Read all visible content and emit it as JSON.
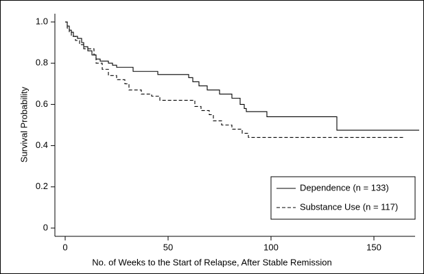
{
  "chart_data": {
    "type": "step",
    "xlabel": "No. of Weeks to the Start of Relapse, After Stable Remission",
    "ylabel": "Survival Probability",
    "xlim": [
      -5,
      170
    ],
    "ylim": [
      -0.04,
      1.04
    ],
    "xticks": [
      0,
      50,
      100,
      150
    ],
    "yticks": [
      {
        "value": 0,
        "label": "0"
      },
      0.2,
      0.4,
      0.6,
      0.8,
      {
        "value": 1,
        "label": "1.0"
      }
    ],
    "legend": "lower right",
    "grid": false,
    "series": [
      {
        "name": "Dependence (n = 133)",
        "color": "#000000",
        "linestyle": "solid",
        "x": [
          0,
          1,
          2,
          3,
          4,
          6,
          8,
          9,
          11,
          13,
          15,
          17,
          21,
          23,
          25,
          33,
          45,
          60,
          62,
          65,
          69,
          75,
          81,
          85,
          87,
          88,
          98,
          132,
          172
        ],
        "values": [
          1.0,
          0.98,
          0.96,
          0.95,
          0.93,
          0.92,
          0.9,
          0.88,
          0.86,
          0.84,
          0.82,
          0.81,
          0.8,
          0.79,
          0.78,
          0.76,
          0.745,
          0.73,
          0.71,
          0.69,
          0.67,
          0.65,
          0.63,
          0.6,
          0.58,
          0.565,
          0.54,
          0.475,
          0.475
        ]
      },
      {
        "name": "Substance Use (n = 117)",
        "color": "#000000",
        "linestyle": "dashed",
        "x": [
          0,
          1,
          2,
          3,
          5,
          7,
          9,
          14,
          15,
          18,
          21,
          25,
          29,
          31,
          37,
          42,
          46,
          63,
          66,
          70,
          72,
          76,
          81,
          86,
          89,
          165
        ],
        "values": [
          1.0,
          0.97,
          0.95,
          0.93,
          0.91,
          0.89,
          0.87,
          0.84,
          0.8,
          0.77,
          0.74,
          0.72,
          0.7,
          0.67,
          0.65,
          0.64,
          0.62,
          0.59,
          0.57,
          0.55,
          0.52,
          0.5,
          0.48,
          0.46,
          0.44,
          0.44
        ]
      }
    ]
  }
}
